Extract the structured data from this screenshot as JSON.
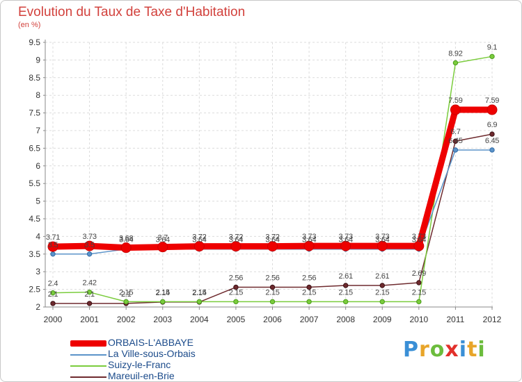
{
  "header": {
    "title": "Evolution du Taux de Taxe d'Habitation",
    "unit": "(en %)"
  },
  "brand": {
    "letters": [
      "P",
      "r",
      "o",
      "x",
      "i",
      "t",
      "i"
    ],
    "colors": [
      "#3a8fd6",
      "#e8a52a",
      "#6cbc3d",
      "#e2302b",
      "#3a8fd6",
      "#e8a52a",
      "#6cbc3d"
    ]
  },
  "chart_data": {
    "type": "line",
    "title": "Evolution du Taux de Taxe d'Habitation",
    "ylabel": "(en %)",
    "xlabel": "",
    "categories": [
      "2000",
      "2001",
      "2002",
      "2003",
      "2004",
      "2005",
      "2006",
      "2007",
      "2008",
      "2009",
      "2010",
      "2011",
      "2012"
    ],
    "ylim": [
      2,
      9.5
    ],
    "yticks": [
      "2",
      "2.5",
      "3",
      "3.5",
      "4",
      "4.5",
      "5",
      "5.5",
      "6",
      "6.5",
      "7",
      "7.5",
      "8",
      "8.5",
      "9",
      "9.5"
    ],
    "grid": true,
    "legend": "bottom-left",
    "series": [
      {
        "name": "ORBAIS-L'ABBAYE",
        "color": "#ee0000",
        "values": [
          3.71,
          3.73,
          3.68,
          3.7,
          3.72,
          3.72,
          3.72,
          3.73,
          3.73,
          3.73,
          3.73,
          7.59,
          7.59
        ],
        "labels": [
          "3.71",
          "3.73",
          "3.68",
          "3.7",
          "3.72",
          "3.72",
          "3.72",
          "3.73",
          "3.73",
          "3.73",
          "3.73",
          "7.59",
          "7.59"
        ]
      },
      {
        "name": "La Ville-sous-Orbais",
        "color": "#5b93c9",
        "values": [
          3.5,
          3.5,
          3.64,
          3.64,
          3.64,
          3.64,
          3.64,
          3.64,
          3.64,
          3.64,
          3.64,
          6.45,
          6.45
        ],
        "labels": [
          "3.5",
          "3.5",
          "3.64",
          "3.64",
          "3.64",
          "3.64",
          "3.64",
          "3.64",
          "3.64",
          "3.64",
          "3.64",
          "6.45",
          "6.45"
        ]
      },
      {
        "name": "Suizy-le-Franc",
        "color": "#7acc3c",
        "values": [
          2.4,
          2.42,
          2.15,
          2.15,
          2.15,
          2.15,
          2.15,
          2.15,
          2.15,
          2.15,
          2.15,
          8.92,
          9.1
        ],
        "labels": [
          "2.4",
          "2.42",
          "2.15",
          "2.15",
          "2.15",
          "2.15",
          "2.15",
          "2.15",
          "2.15",
          "2.15",
          "2.15",
          "8.92",
          "9.1"
        ]
      },
      {
        "name": "Mareuil-en-Brie",
        "color": "#6e2a2e",
        "values": [
          2.1,
          2.1,
          2.1,
          2.14,
          2.14,
          2.56,
          2.56,
          2.56,
          2.61,
          2.61,
          2.69,
          6.7,
          6.9
        ],
        "labels": [
          "2.1",
          "2.1",
          "2.1",
          "2.14",
          "2.14",
          "2.56",
          "2.56",
          "2.56",
          "2.61",
          "2.61",
          "2.69",
          "6.7",
          "6.9"
        ]
      }
    ]
  }
}
